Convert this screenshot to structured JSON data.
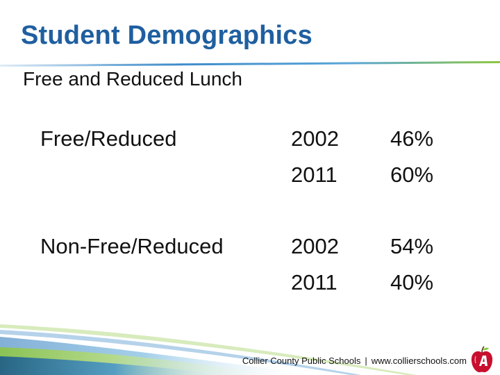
{
  "slide": {
    "title": "Student Demographics",
    "subtitle": "Free and Reduced Lunch"
  },
  "table": {
    "rows": [
      {
        "category": "Free/Reduced",
        "entries": [
          {
            "year": "2002",
            "percent": "46%"
          },
          {
            "year": "2011",
            "percent": "60%"
          }
        ]
      },
      {
        "category": "Non-Free/Reduced",
        "entries": [
          {
            "year": "2002",
            "percent": "54%"
          },
          {
            "year": "2011",
            "percent": "40%"
          }
        ]
      }
    ]
  },
  "footer": {
    "organization": "Collier County Public Schools",
    "separator": "|",
    "website": "www.collierschools.com"
  },
  "colors": {
    "title": "#1f5fa0",
    "accent_green": "#8cc63f",
    "accent_blue": "#2a7fc4",
    "apple_red": "#c8102e"
  },
  "icons": {
    "logo": "apple-logo-icon"
  }
}
